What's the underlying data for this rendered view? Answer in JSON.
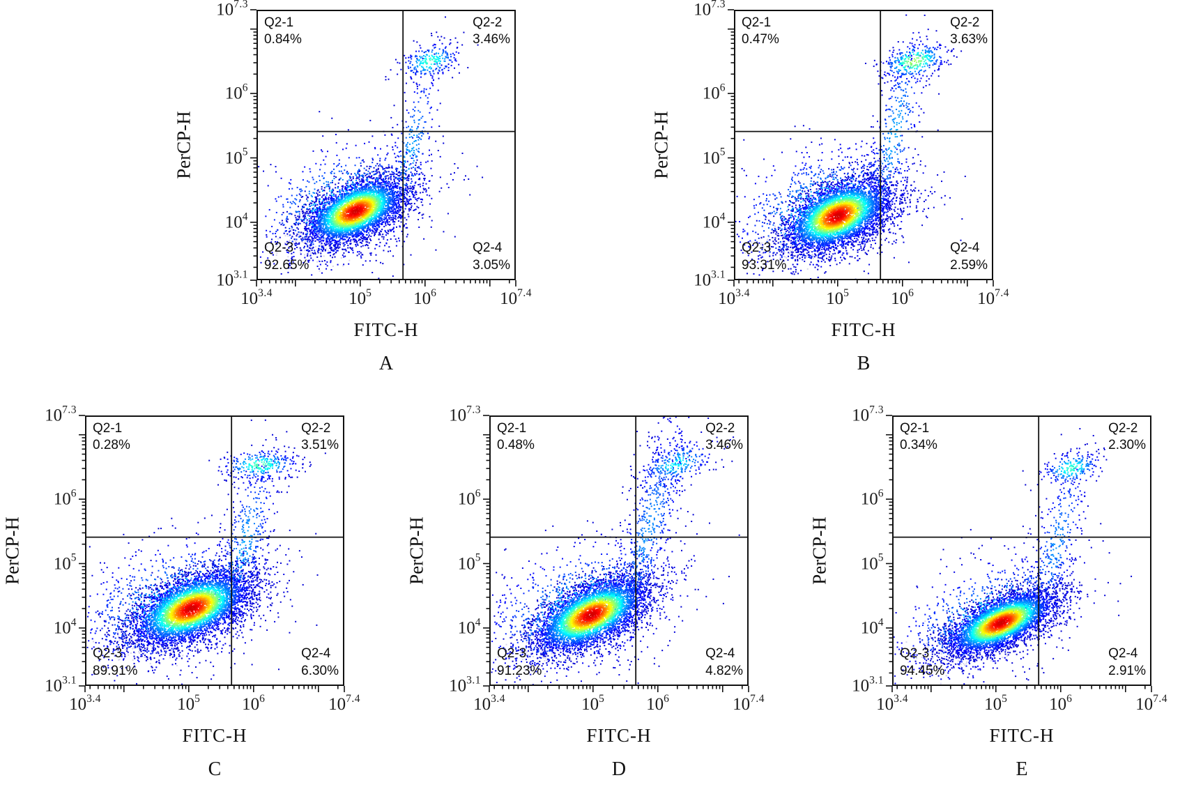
{
  "figure": {
    "background": "#ffffff"
  },
  "style_colors": {
    "frame": "#111111",
    "gate_line": "#111111",
    "tick": "#111111",
    "label_text": "#0d0d0d",
    "pale_points": "#cdc9ea",
    "density_scale": [
      "#0000d1",
      "#00c8ff",
      "#21d421",
      "#ffe000",
      "#ff7a00",
      "#d10000"
    ]
  },
  "chart_data": [
    {
      "type": "scatter",
      "panel": "A",
      "xlabel": "FITC-H",
      "ylabel": "PerCP-H",
      "x_axis": {
        "scale": "log",
        "min_exp": 3.4,
        "max_exp": 7.4,
        "tick_exps": [
          "3.4",
          "5",
          "6",
          "7.4"
        ]
      },
      "y_axis": {
        "scale": "log",
        "min_exp": 3.1,
        "max_exp": 7.3,
        "tick_exps": [
          "7.3",
          "6",
          "5",
          "4",
          "3.1"
        ]
      },
      "gate": {
        "x_exp": 5.66,
        "y_exp": 5.41
      },
      "quadrants": [
        {
          "name": "Q2-1",
          "value": "0.84%",
          "position": "top-left"
        },
        {
          "name": "Q2-2",
          "value": "3.46%",
          "position": "top-right"
        },
        {
          "name": "Q2-3",
          "value": "92.65%",
          "position": "bottom-left"
        },
        {
          "name": "Q2-4",
          "value": "3.05%",
          "position": "bottom-right"
        }
      ],
      "seed": 101,
      "clusters": [
        {
          "n": 4600,
          "cx": 4.93,
          "cy": 4.17,
          "sx": 0.4,
          "sy": 0.27,
          "rho": 0.5,
          "peak": 1.0,
          "gamma": 2.0
        },
        {
          "n": 750,
          "cx": 4.72,
          "cy": 4.28,
          "sx": 0.72,
          "sy": 0.5,
          "rho": 0.35,
          "peak": 0.32,
          "gamma": 1.2
        },
        {
          "n": 300,
          "cx": 5.78,
          "cy": 5.1,
          "sx": 0.22,
          "sy": 0.75,
          "rho": 0.72,
          "peak": 0.25,
          "gamma": 1.2
        },
        {
          "n": 240,
          "cx": 6.08,
          "cy": 6.5,
          "sx": 0.23,
          "sy": 0.14,
          "rho": 0.3,
          "peak": 0.42,
          "gamma": 1.3
        },
        {
          "n": 150,
          "cx": 4.33,
          "cy": 3.72,
          "sx": 0.3,
          "sy": 0.17,
          "rho": 0.2,
          "pale": true
        }
      ]
    },
    {
      "type": "scatter",
      "panel": "B",
      "xlabel": "FITC-H",
      "ylabel": "PerCP-H",
      "x_axis": {
        "scale": "log",
        "min_exp": 3.4,
        "max_exp": 7.4,
        "tick_exps": [
          "3.4",
          "5",
          "6",
          "7.4"
        ]
      },
      "y_axis": {
        "scale": "log",
        "min_exp": 3.1,
        "max_exp": 7.3,
        "tick_exps": [
          "7.3",
          "6",
          "5",
          "4",
          "3.1"
        ]
      },
      "gate": {
        "x_exp": 5.66,
        "y_exp": 5.41
      },
      "quadrants": [
        {
          "name": "Q2-1",
          "value": "0.47%",
          "position": "top-left"
        },
        {
          "name": "Q2-2",
          "value": "3.63%",
          "position": "top-right"
        },
        {
          "name": "Q2-3",
          "value": "93.31%",
          "position": "bottom-left"
        },
        {
          "name": "Q2-4",
          "value": "2.59%",
          "position": "bottom-right"
        }
      ],
      "seed": 102,
      "clusters": [
        {
          "n": 5000,
          "cx": 5.0,
          "cy": 4.1,
          "sx": 0.42,
          "sy": 0.29,
          "rho": 0.45,
          "peak": 1.0,
          "gamma": 2.0
        },
        {
          "n": 850,
          "cx": 4.78,
          "cy": 4.2,
          "sx": 0.76,
          "sy": 0.52,
          "rho": 0.32,
          "peak": 0.32,
          "gamma": 1.2
        },
        {
          "n": 380,
          "cx": 5.88,
          "cy": 5.35,
          "sx": 0.24,
          "sy": 0.85,
          "rho": 0.7,
          "peak": 0.25,
          "gamma": 1.2
        },
        {
          "n": 330,
          "cx": 6.18,
          "cy": 6.5,
          "sx": 0.26,
          "sy": 0.15,
          "rho": 0.35,
          "peak": 0.55,
          "gamma": 1.4
        },
        {
          "n": 160,
          "cx": 4.4,
          "cy": 3.68,
          "sx": 0.32,
          "sy": 0.16,
          "rho": 0.2,
          "pale": true
        }
      ]
    },
    {
      "type": "scatter",
      "panel": "C",
      "xlabel": "FITC-H",
      "ylabel": "PerCP-H",
      "x_axis": {
        "scale": "log",
        "min_exp": 3.4,
        "max_exp": 7.4,
        "tick_exps": [
          "3.4",
          "5",
          "6",
          "7.4"
        ]
      },
      "y_axis": {
        "scale": "log",
        "min_exp": 3.1,
        "max_exp": 7.3,
        "tick_exps": [
          "7.3",
          "6",
          "5",
          "4",
          "3.1"
        ]
      },
      "gate": {
        "x_exp": 5.66,
        "y_exp": 5.41
      },
      "quadrants": [
        {
          "name": "Q2-1",
          "value": "0.28%",
          "position": "top-left"
        },
        {
          "name": "Q2-2",
          "value": "3.51%",
          "position": "top-right"
        },
        {
          "name": "Q2-3",
          "value": "89.91%",
          "position": "bottom-left"
        },
        {
          "name": "Q2-4",
          "value": "6.30%",
          "position": "bottom-right"
        }
      ],
      "seed": 103,
      "clusters": [
        {
          "n": 5400,
          "cx": 5.04,
          "cy": 4.3,
          "sx": 0.47,
          "sy": 0.3,
          "rho": 0.5,
          "peak": 1.0,
          "gamma": 2.0
        },
        {
          "n": 850,
          "cx": 4.78,
          "cy": 4.38,
          "sx": 0.8,
          "sy": 0.52,
          "rho": 0.35,
          "peak": 0.32,
          "gamma": 1.2
        },
        {
          "n": 430,
          "cx": 5.85,
          "cy": 5.25,
          "sx": 0.26,
          "sy": 0.8,
          "rho": 0.7,
          "peak": 0.25,
          "gamma": 1.2
        },
        {
          "n": 300,
          "cx": 6.1,
          "cy": 6.53,
          "sx": 0.3,
          "sy": 0.12,
          "rho": 0.1,
          "peak": 0.45,
          "gamma": 1.3
        },
        {
          "n": 150,
          "cx": 4.35,
          "cy": 3.8,
          "sx": 0.3,
          "sy": 0.17,
          "rho": 0.2,
          "pale": true
        }
      ]
    },
    {
      "type": "scatter",
      "panel": "D",
      "xlabel": "FITC-H",
      "ylabel": "PerCP-H",
      "x_axis": {
        "scale": "log",
        "min_exp": 3.4,
        "max_exp": 7.4,
        "tick_exps": [
          "3.4",
          "5",
          "6",
          "7.4"
        ]
      },
      "y_axis": {
        "scale": "log",
        "min_exp": 3.1,
        "max_exp": 7.3,
        "tick_exps": [
          "7.3",
          "6",
          "5",
          "4",
          "3.1"
        ]
      },
      "gate": {
        "x_exp": 5.66,
        "y_exp": 5.41
      },
      "quadrants": [
        {
          "name": "Q2-1",
          "value": "0.48%",
          "position": "top-left"
        },
        {
          "name": "Q2-2",
          "value": "3.46%",
          "position": "top-right"
        },
        {
          "name": "Q2-3",
          "value": "91.23%",
          "position": "bottom-left"
        },
        {
          "name": "Q2-4",
          "value": "4.82%",
          "position": "bottom-right"
        }
      ],
      "seed": 104,
      "clusters": [
        {
          "n": 5000,
          "cx": 4.97,
          "cy": 4.2,
          "sx": 0.45,
          "sy": 0.3,
          "rho": 0.55,
          "peak": 1.0,
          "gamma": 2.0
        },
        {
          "n": 950,
          "cx": 4.8,
          "cy": 4.32,
          "sx": 0.82,
          "sy": 0.56,
          "rho": 0.42,
          "peak": 0.3,
          "gamma": 1.2
        },
        {
          "n": 620,
          "cx": 5.85,
          "cy": 5.5,
          "sx": 0.3,
          "sy": 0.95,
          "rho": 0.78,
          "peak": 0.22,
          "gamma": 1.1
        },
        {
          "n": 260,
          "cx": 6.28,
          "cy": 6.55,
          "sx": 0.3,
          "sy": 0.18,
          "rho": 0.5,
          "peak": 0.35,
          "gamma": 1.3
        },
        {
          "n": 140,
          "cx": 4.4,
          "cy": 3.75,
          "sx": 0.3,
          "sy": 0.16,
          "rho": 0.2,
          "pale": true
        }
      ]
    },
    {
      "type": "scatter",
      "panel": "E",
      "xlabel": "FITC-H",
      "ylabel": "PerCP-H",
      "x_axis": {
        "scale": "log",
        "min_exp": 3.4,
        "max_exp": 7.4,
        "tick_exps": [
          "3.4",
          "5",
          "6",
          "7.4"
        ]
      },
      "y_axis": {
        "scale": "log",
        "min_exp": 3.1,
        "max_exp": 7.3,
        "tick_exps": [
          "7.3",
          "6",
          "5",
          "4",
          "3.1"
        ]
      },
      "gate": {
        "x_exp": 5.66,
        "y_exp": 5.41
      },
      "quadrants": [
        {
          "name": "Q2-1",
          "value": "0.34%",
          "position": "top-left"
        },
        {
          "name": "Q2-2",
          "value": "2.30%",
          "position": "top-right"
        },
        {
          "name": "Q2-3",
          "value": "94.45%",
          "position": "bottom-left"
        },
        {
          "name": "Q2-4",
          "value": "2.91%",
          "position": "bottom-right"
        }
      ],
      "seed": 105,
      "clusters": [
        {
          "n": 4800,
          "cx": 5.08,
          "cy": 4.08,
          "sx": 0.43,
          "sy": 0.26,
          "rho": 0.62,
          "peak": 1.0,
          "gamma": 2.0
        },
        {
          "n": 750,
          "cx": 4.88,
          "cy": 4.18,
          "sx": 0.76,
          "sy": 0.5,
          "rho": 0.5,
          "peak": 0.3,
          "gamma": 1.2
        },
        {
          "n": 330,
          "cx": 5.92,
          "cy": 5.25,
          "sx": 0.26,
          "sy": 0.8,
          "rho": 0.75,
          "peak": 0.22,
          "gamma": 1.2
        },
        {
          "n": 230,
          "cx": 6.17,
          "cy": 6.48,
          "sx": 0.23,
          "sy": 0.13,
          "rho": 0.3,
          "peak": 0.42,
          "gamma": 1.3
        },
        {
          "n": 150,
          "cx": 4.45,
          "cy": 3.68,
          "sx": 0.32,
          "sy": 0.16,
          "rho": 0.2,
          "pale": true
        }
      ]
    }
  ]
}
